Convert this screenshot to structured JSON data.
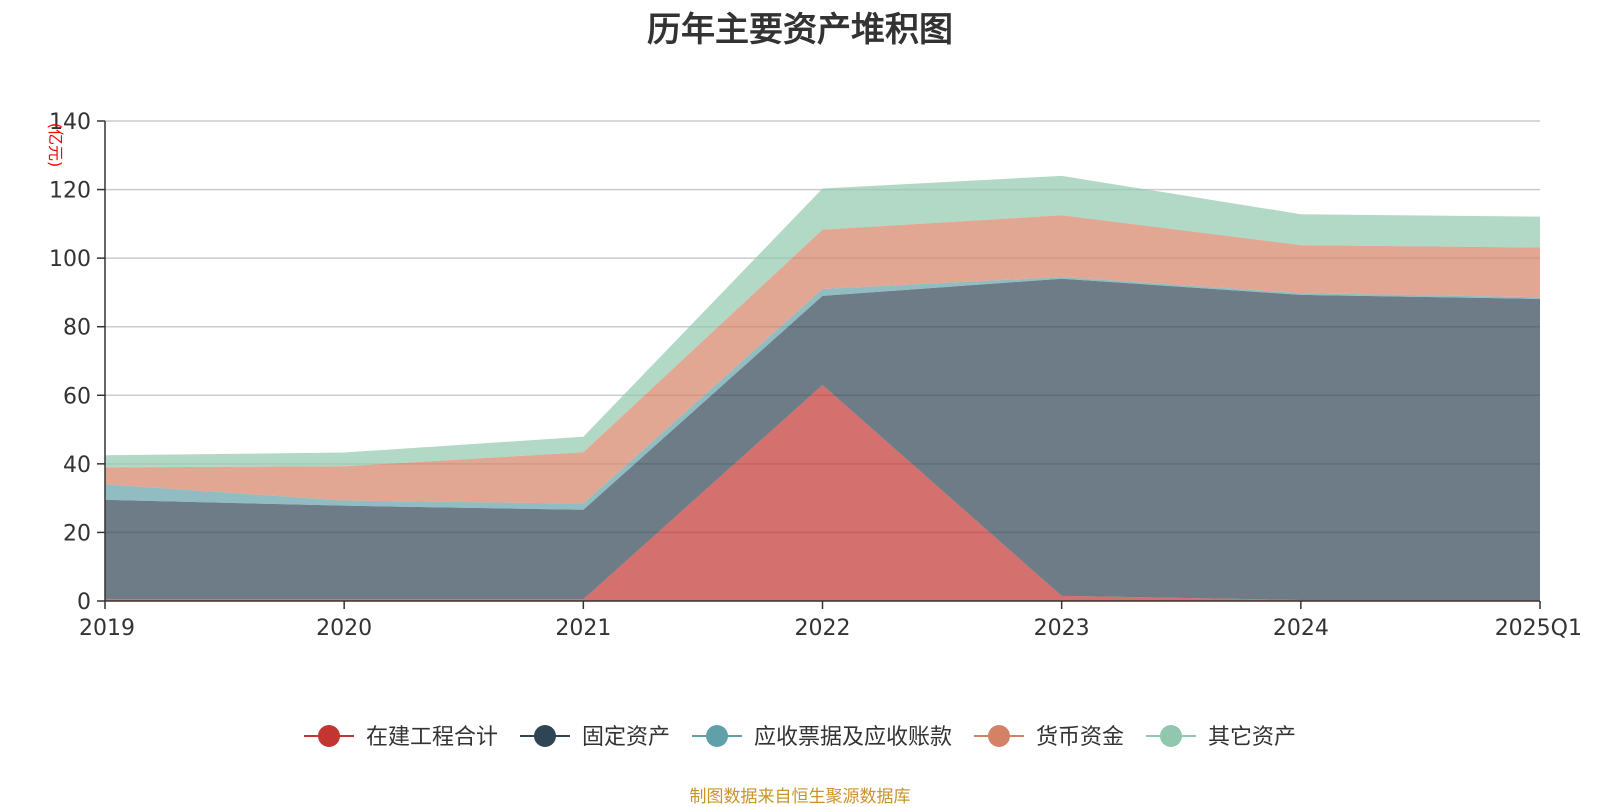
{
  "chart_data": {
    "type": "area",
    "title": "历年主要资产堆积图",
    "ylabel": "(亿元)",
    "xlabel": "",
    "categories": [
      "2019",
      "2020",
      "2021",
      "2022",
      "2023",
      "2024",
      "2025Q1"
    ],
    "ylim": [
      0,
      140
    ],
    "yticks": [
      0,
      20,
      40,
      60,
      80,
      100,
      120,
      140
    ],
    "stacked": true,
    "grid": true,
    "legend_position": "bottom",
    "series": [
      {
        "name": "在建工程合计",
        "color": "#c23531",
        "values": [
          0.5,
          0.5,
          0.5,
          63,
          1.5,
          0.3,
          0.3
        ]
      },
      {
        "name": "固定资产",
        "color": "#2f4554",
        "values": [
          29,
          27.3,
          26.1,
          26,
          92.5,
          89,
          87.8
        ]
      },
      {
        "name": "应收票据及应收账款",
        "color": "#61a0a8",
        "values": [
          4.5,
          1.5,
          1.8,
          2,
          0.5,
          0.5,
          0.5
        ]
      },
      {
        "name": "货币资金",
        "color": "#d48265",
        "values": [
          5,
          10,
          15,
          17.3,
          18,
          14,
          14.5
        ]
      },
      {
        "name": "其它资产",
        "color": "#91c7ae",
        "values": [
          3.5,
          4,
          4.5,
          12,
          11.5,
          9,
          9
        ]
      }
    ]
  },
  "source_note": "制图数据来自恒生聚源数据库"
}
